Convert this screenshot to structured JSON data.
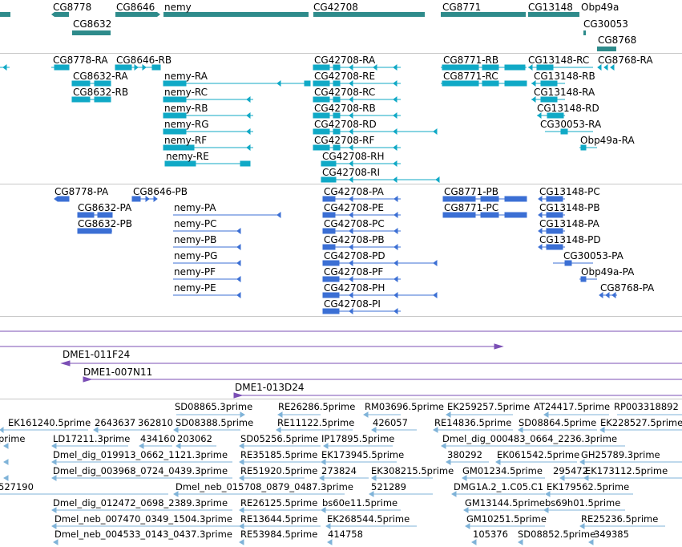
{
  "colors": {
    "gene": "#2e8b8b",
    "transcript": "#10a9c6",
    "protein": "#3b6fd4",
    "clone": "#7b4fb5",
    "est": "#7fb3d8",
    "separator": "#c8c8c8"
  },
  "gene_track": {
    "labels": [
      "CG8778",
      "CG8646",
      "nemy",
      "CG42708",
      "CG8771",
      "CG13148",
      "Obp49a",
      "CG8632",
      "CG30053",
      "CG8768"
    ]
  },
  "transcript_track": {
    "labels": [
      "CG8778-RA",
      "CG8646-RB",
      "CG8632-RA",
      "CG8632-RB",
      "nemy-RA",
      "nemy-RC",
      "nemy-RB",
      "nemy-RG",
      "nemy-RF",
      "nemy-RE",
      "CG42708-RA",
      "CG42708-RE",
      "CG42708-RC",
      "CG42708-RB",
      "CG42708-RD",
      "CG42708-RF",
      "CG42708-RH",
      "CG42708-RI",
      "CG8771-RB",
      "CG8771-RC",
      "CG13148-RC",
      "CG8768-RA",
      "CG13148-RB",
      "CG13148-RA",
      "CG13148-RD",
      "CG30053-RA",
      "Obp49a-RA"
    ]
  },
  "protein_track": {
    "labels": [
      "CG8778-PA",
      "CG8646-PB",
      "CG8632-PA",
      "CG8632-PB",
      "nemy-PA",
      "nemy-PC",
      "nemy-PB",
      "nemy-PG",
      "nemy-PF",
      "nemy-PE",
      "CG42708-PA",
      "CG42708-PE",
      "CG42708-PC",
      "CG42708-PB",
      "CG42708-PD",
      "CG42708-PF",
      "CG42708-PH",
      "CG42708-PI",
      "CG8771-PB",
      "CG8771-PC",
      "CG13148-PC",
      "CG13148-PB",
      "CG13148-PA",
      "CG13148-PD",
      "CG30053-PA",
      "Obp49a-PA",
      "CG8768-PA"
    ]
  },
  "clone_track": {
    "labels": [
      "DME1-011F24",
      "DME1-007N11",
      "DME1-013D24"
    ]
  },
  "est_track": {
    "labels": [
      "SD08865.3prime",
      "RE26286.5prime",
      "RM03696.5prime",
      "EK259257.5prime",
      "AT24417.5prime",
      "RP003318892",
      "EK161240.5prime",
      "2643637",
      "362810",
      "SD08388.5prime",
      "RE11122.5prime",
      "426057",
      "RE14836.5prime",
      "SD08864.5prime",
      "EK228527.5prime",
      "prime",
      "LD17211.3prime",
      "434160",
      "203062",
      "SD05256.5prime",
      "IP17895.5prime",
      "Dmel_dig_000483_0664_2236.3prime",
      "Dmel_dig_019913_0662_1121.3prime",
      "RE35185.5prime",
      "EK173945.5prime",
      "380292",
      "EK061542.5prime",
      "GH25789.3prime",
      "Dmel_dig_003968_0724_0439.3prime",
      "RE51920.5prime",
      "273824",
      "EK308215.5prime",
      "GM01234.5prime",
      "295472",
      "EK173112.5prime",
      "527190",
      "Dmel_neb_015708_0879_0487.3prime",
      "521289",
      "DMG1A.2_1.C05.C1",
      "EK179562.5prime",
      "Dmel_dig_012472_0698_2389.3prime",
      "RE26125.5prime",
      "bs60e11.5prime",
      "GM13144.5prime",
      "bs69h01.5prime",
      "Dmel_neb_007470_0349_1504.3prime",
      "RE13644.5prime",
      "EK268544.5prime",
      "GM10251.5prime",
      "RE25236.5prime",
      "Dmel_neb_004533_0143_0437.3prime",
      "RE53984.5prime",
      "414758",
      "105376",
      "SD08852.5prime",
      "349385"
    ]
  }
}
